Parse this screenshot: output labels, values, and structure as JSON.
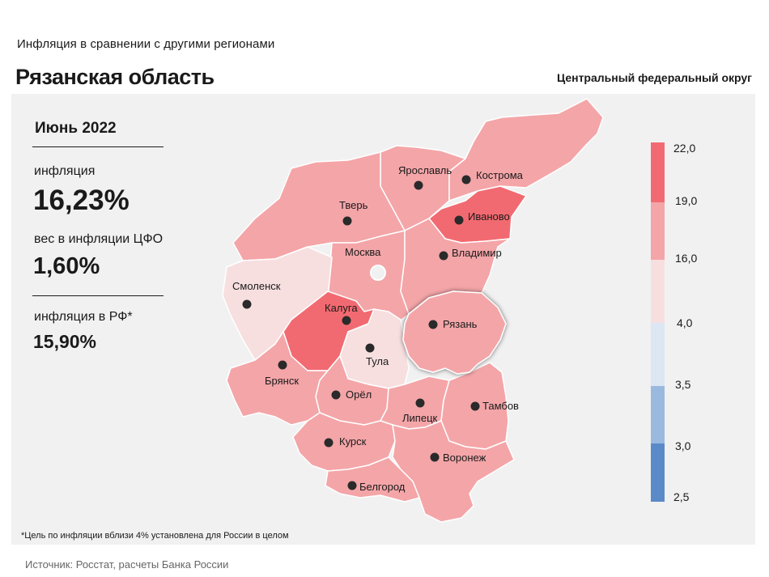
{
  "header": {
    "subtitle": "Инфляция в сравнении с другими регионами",
    "title": "Рязанская область",
    "district": "Центральный федеральный округ"
  },
  "stats": {
    "period": "Июнь 2022",
    "inflation_label": "инфляция",
    "inflation_value": "16,23%",
    "weight_label": "вес в инфляции ЦФО",
    "weight_value": "1,60%",
    "rf_label": "инфляция в РФ*",
    "rf_value": "15,90%"
  },
  "map": {
    "highlighted_region": "Рязань",
    "regions": [
      {
        "name": "Ярославль",
        "color": "#f4a5a8"
      },
      {
        "name": "Кострома",
        "color": "#f4a5a8"
      },
      {
        "name": "Тверь",
        "color": "#f4a5a8"
      },
      {
        "name": "Иваново",
        "color": "#f26a71"
      },
      {
        "name": "Москва",
        "color": "#f4a5a8"
      },
      {
        "name": "Владимир",
        "color": "#f4a5a8"
      },
      {
        "name": "Смоленск",
        "color": "#f7dfe0"
      },
      {
        "name": "Калуга",
        "color": "#f26a71"
      },
      {
        "name": "Рязань",
        "color": "#f4a5a8"
      },
      {
        "name": "Тула",
        "color": "#f7dfe0"
      },
      {
        "name": "Брянск",
        "color": "#f4a5a8"
      },
      {
        "name": "Орёл",
        "color": "#f4a5a8"
      },
      {
        "name": "Липецк",
        "color": "#f4a5a8"
      },
      {
        "name": "Тамбов",
        "color": "#f4a5a8"
      },
      {
        "name": "Курск",
        "color": "#f4a5a8"
      },
      {
        "name": "Воронеж",
        "color": "#f4a5a8"
      },
      {
        "name": "Белгород",
        "color": "#f4a5a8"
      }
    ]
  },
  "legend": {
    "ticks": [
      "22,0",
      "19,0",
      "16,0",
      "4,0",
      "3,5",
      "3,0",
      "2,5"
    ],
    "bands": [
      {
        "from": "19,0",
        "to": "22,0",
        "color": "#f26a71"
      },
      {
        "from": "16,0",
        "to": "19,0",
        "color": "#f4a5a8"
      },
      {
        "from": "4,0",
        "to": "16,0",
        "color": "#f7dfe0"
      },
      {
        "from": "3,5",
        "to": "4,0",
        "color": "#dde6f3"
      },
      {
        "from": "3,0",
        "to": "3,5",
        "color": "#9ab9de"
      },
      {
        "from": "2,5",
        "to": "3,0",
        "color": "#5a8ac8"
      }
    ]
  },
  "footnote": "*Цель по инфляции вблизи 4% установлена для России в целом",
  "source": "Источник: Росстат, расчеты Банка России"
}
